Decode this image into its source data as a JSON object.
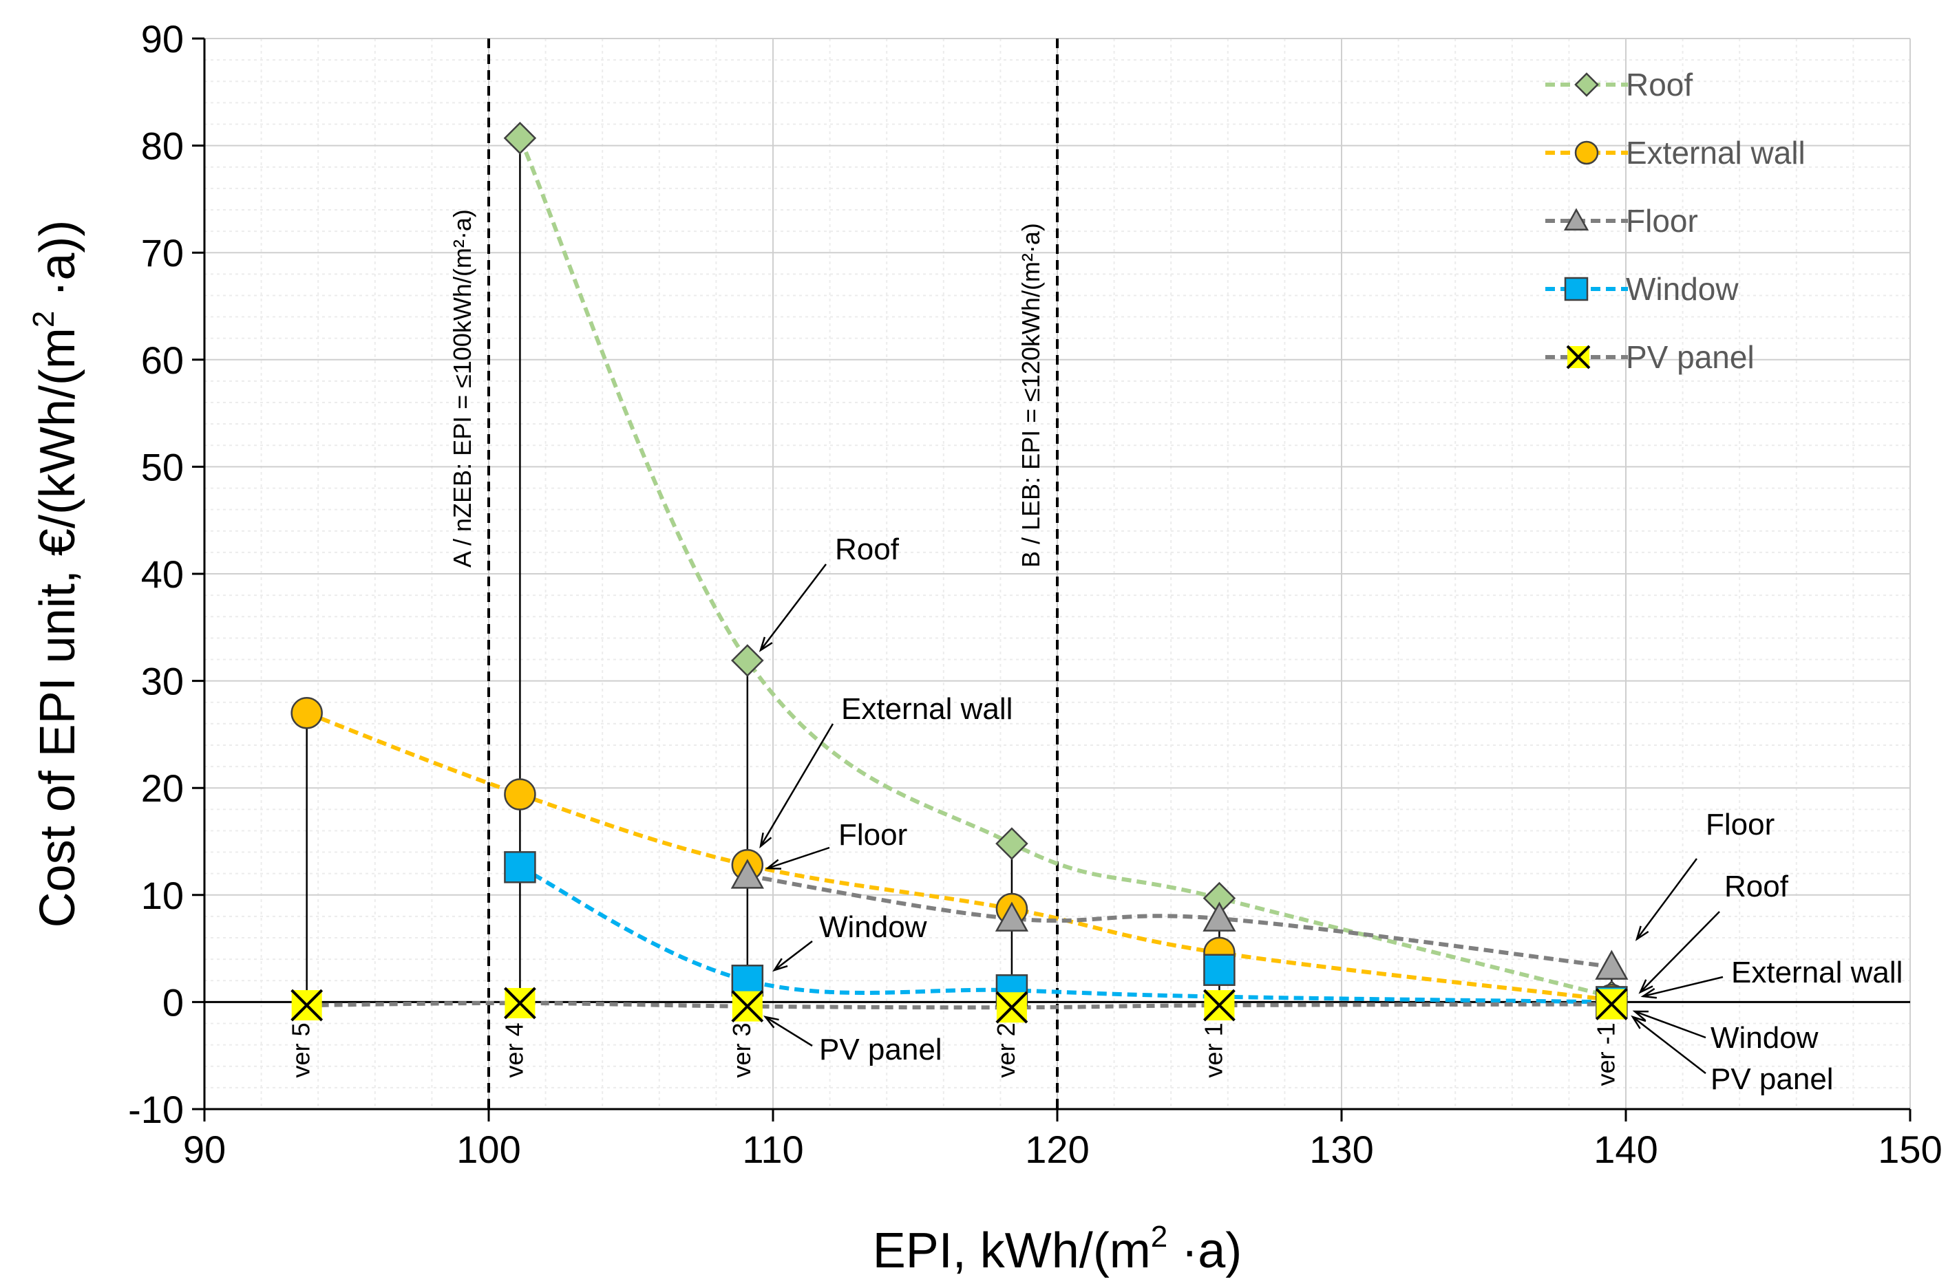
{
  "chart_data": {
    "type": "line",
    "xlabel_main": "EPI, kWh/(m",
    "xlabel_sup": "2",
    "xlabel_tail": " ·a)",
    "ylabel_main": "Cost of EPI unit, €/(kWh/(m",
    "ylabel_sup": "2",
    "ylabel_tail": " ·a))",
    "xlim": [
      90,
      150
    ],
    "ylim": [
      -10,
      90
    ],
    "xticks": [
      "90",
      "100",
      "110",
      "120",
      "130",
      "140",
      "150"
    ],
    "yticks": [
      "-10",
      "0",
      "10",
      "20",
      "30",
      "40",
      "50",
      "60",
      "70",
      "80",
      "90"
    ],
    "versions": [
      {
        "label": "ver 5",
        "x": 93.6
      },
      {
        "label": "ver 4",
        "x": 101.1
      },
      {
        "label": "ver 3",
        "x": 109.1
      },
      {
        "label": "ver 2",
        "x": 118.4
      },
      {
        "label": "ver 1",
        "x": 125.7
      },
      {
        "label": "ver -1",
        "x": 139.5
      }
    ],
    "reference_lines": [
      {
        "x": 100,
        "label": "A / nZEB: EPI = ≤100kWh/(m²·a)"
      },
      {
        "x": 120,
        "label": "B / LEB: EPI = ≤120kWh/(m²·a)"
      }
    ],
    "series": [
      {
        "name": "Roof",
        "color": "#a9d18e",
        "marker": "diamond",
        "marker_fill": "#a9d18e",
        "x": [
          101.1,
          109.1,
          118.4,
          125.7,
          139.5
        ],
        "values": [
          80.7,
          31.9,
          14.8,
          9.7,
          0.5
        ]
      },
      {
        "name": "External wall",
        "color": "#ffc000",
        "marker": "circle",
        "marker_fill": "#ffc000",
        "x": [
          93.6,
          101.1,
          109.1,
          118.4,
          125.7,
          139.5
        ],
        "values": [
          27.0,
          19.4,
          12.8,
          8.7,
          4.6,
          0.2
        ]
      },
      {
        "name": "Floor",
        "color": "#7f7f7f",
        "marker": "triangle",
        "marker_fill": "#a6a6a6",
        "x": [
          109.1,
          118.4,
          125.7,
          139.5
        ],
        "values": [
          11.8,
          7.8,
          7.8,
          3.3
        ]
      },
      {
        "name": "Window",
        "color": "#00b0f0",
        "marker": "square",
        "marker_fill": "#00b0f0",
        "x": [
          101.1,
          109.1,
          118.4,
          125.7,
          139.5
        ],
        "values": [
          12.6,
          2.0,
          1.1,
          3.0,
          0.0
        ]
      },
      {
        "name": "PV panel",
        "color": "#7f7f7f",
        "marker": "x",
        "marker_fill": "#ffff00",
        "x": [
          93.6,
          101.1,
          109.1,
          118.4,
          125.7,
          139.5
        ],
        "values": [
          -0.3,
          -0.1,
          -0.4,
          -0.5,
          -0.3,
          -0.2
        ]
      }
    ],
    "annotations": [
      "Roof",
      "External wall",
      "Floor",
      "Window",
      "PV panel",
      "Floor",
      "Roof",
      "External wall",
      "Window",
      "PV panel"
    ]
  }
}
